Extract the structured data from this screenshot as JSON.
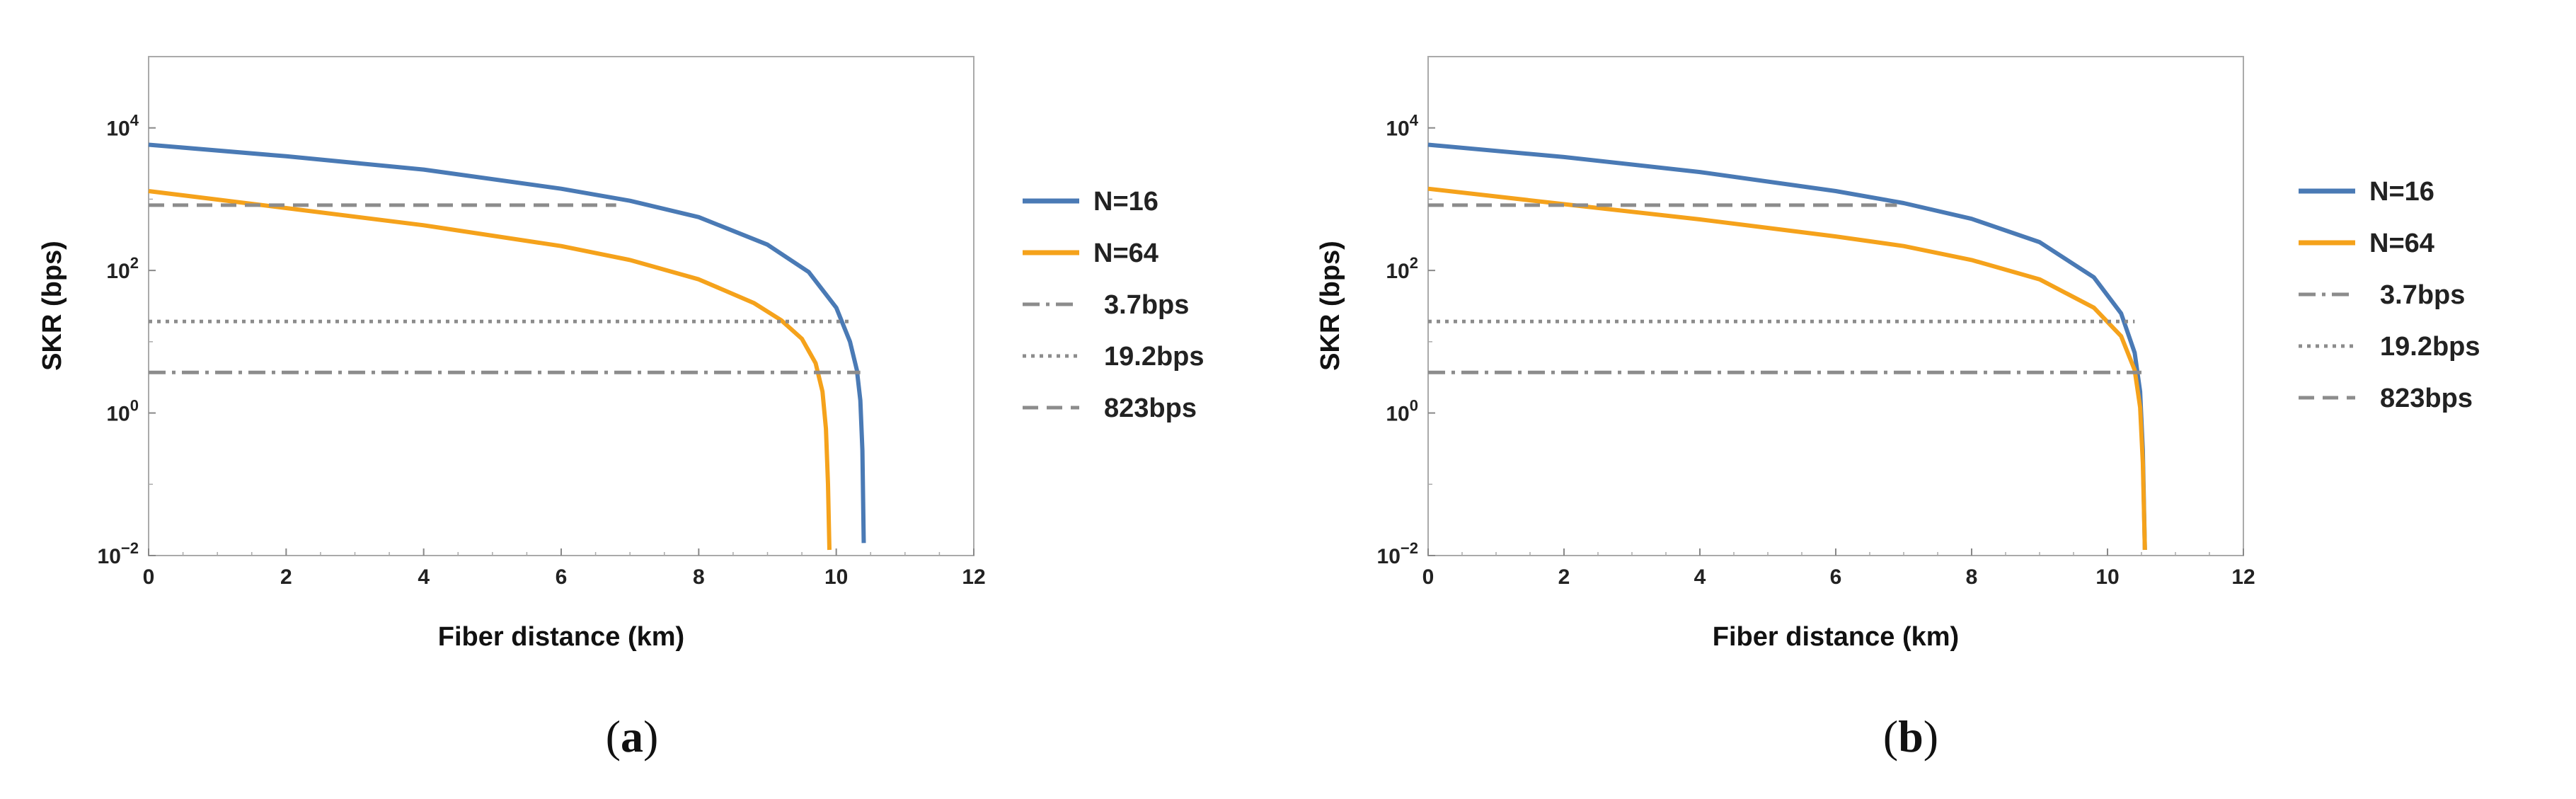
{
  "chart_data": [
    {
      "type": "line",
      "panel_label": "a",
      "xlabel": "Fiber distance (km)",
      "ylabel": "SKR (bps)",
      "xlim": [
        0,
        12
      ],
      "ylim": [
        0.01,
        100000
      ],
      "yscale": "log",
      "xticks": [
        "0",
        "2",
        "4",
        "6",
        "8",
        "10",
        "12"
      ],
      "yticks": [
        {
          "base": "10",
          "exp": "4",
          "value": 10000
        },
        {
          "base": "10",
          "exp": "2",
          "value": 100
        },
        {
          "base": "10",
          "exp": "0",
          "value": 1
        },
        {
          "base": "10",
          "exp": "−2",
          "value": 0.01
        }
      ],
      "legend_position": "right",
      "series": [
        {
          "name": "N=16",
          "color": "#4a7ab5",
          "style": "solid",
          "x": [
            0,
            2,
            4,
            6,
            7,
            8,
            9,
            9.6,
            10,
            10.2,
            10.3,
            10.35,
            10.38,
            10.4
          ],
          "y": [
            5800,
            4000,
            2600,
            1400,
            950,
            560,
            230,
            95,
            30,
            10,
            4,
            1.5,
            0.3,
            0.015
          ]
        },
        {
          "name": "N=64",
          "color": "#f5a21b",
          "style": "solid",
          "x": [
            0,
            2,
            4,
            6,
            7,
            8,
            8.8,
            9.2,
            9.5,
            9.7,
            9.8,
            9.85,
            9.88,
            9.9
          ],
          "y": [
            1300,
            750,
            430,
            220,
            140,
            75,
            35,
            20,
            11,
            5,
            2,
            0.6,
            0.1,
            0.012
          ]
        },
        {
          "name": "3.7bps",
          "color": "#8c8c8c",
          "style": "dashdot",
          "x": [
            0,
            10.35
          ],
          "y": [
            3.7,
            3.7
          ]
        },
        {
          "name": "19.2bps",
          "color": "#8c8c8c",
          "style": "dotted",
          "x": [
            0,
            10.2
          ],
          "y": [
            19.2,
            19.2
          ]
        },
        {
          "name": "823bps",
          "color": "#8c8c8c",
          "style": "dashed",
          "x": [
            0,
            6.8
          ],
          "y": [
            823,
            823
          ]
        }
      ]
    },
    {
      "type": "line",
      "panel_label": "b",
      "xlabel": "Fiber distance (km)",
      "ylabel": "SKR (bps)",
      "xlim": [
        0,
        12
      ],
      "ylim": [
        0.01,
        100000
      ],
      "yscale": "log",
      "xticks": [
        "0",
        "2",
        "4",
        "6",
        "8",
        "10",
        "12"
      ],
      "yticks": [
        {
          "base": "10",
          "exp": "4",
          "value": 10000
        },
        {
          "base": "10",
          "exp": "2",
          "value": 100
        },
        {
          "base": "10",
          "exp": "0",
          "value": 1
        },
        {
          "base": "10",
          "exp": "−2",
          "value": 0.01
        }
      ],
      "legend_position": "right",
      "series": [
        {
          "name": "N=16",
          "color": "#4a7ab5",
          "style": "solid",
          "x": [
            0,
            2,
            4,
            6,
            7,
            8,
            9,
            9.8,
            10.2,
            10.4,
            10.48,
            10.52,
            10.55
          ],
          "y": [
            5800,
            3900,
            2400,
            1300,
            880,
            530,
            250,
            80,
            25,
            7,
            2,
            0.3,
            0.012
          ]
        },
        {
          "name": "N=64",
          "color": "#f5a21b",
          "style": "solid",
          "x": [
            0,
            2,
            4,
            6,
            7,
            8,
            9,
            9.8,
            10.2,
            10.4,
            10.48,
            10.52,
            10.55
          ],
          "y": [
            1400,
            850,
            520,
            300,
            220,
            140,
            75,
            30,
            12,
            4,
            1.2,
            0.2,
            0.012
          ]
        },
        {
          "name": "3.7bps",
          "color": "#8c8c8c",
          "style": "dashdot",
          "x": [
            0,
            10.5
          ],
          "y": [
            3.7,
            3.7
          ]
        },
        {
          "name": "19.2bps",
          "color": "#8c8c8c",
          "style": "dotted",
          "x": [
            0,
            10.4
          ],
          "y": [
            19.2,
            19.2
          ]
        },
        {
          "name": "823bps",
          "color": "#8c8c8c",
          "style": "dashed",
          "x": [
            0,
            6.9
          ],
          "y": [
            823,
            823
          ]
        }
      ]
    }
  ]
}
